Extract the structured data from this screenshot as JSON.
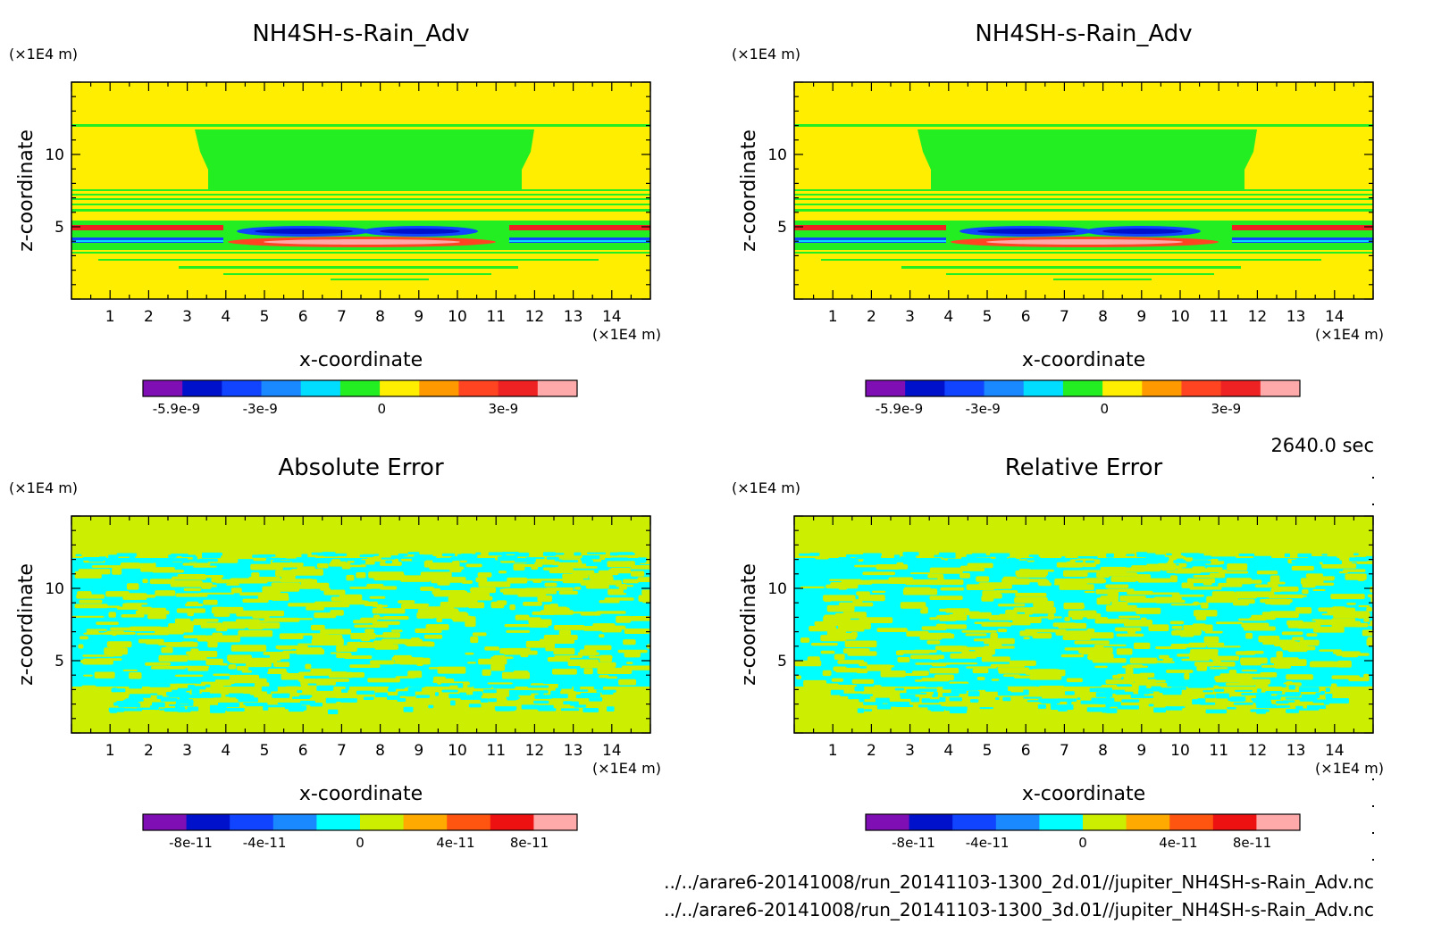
{
  "time_label": "2640.0 sec",
  "files": [
    "../../arare6-20141008/run_20141103-1300_2d.01//jupiter_NH4SH-s-Rain_Adv.nc",
    "../../arare6-20141008/run_20141103-1300_3d.01//jupiter_NH4SH-s-Rain_Adv.nc"
  ],
  "chart_data": [
    {
      "type": "heatmap",
      "title": "NH4SH-s-Rain_Adv",
      "xlabel": "x-coordinate",
      "ylabel": "z-coordinate",
      "x_unit": "(×1E4 m)",
      "y_unit": "(×1E4 m)",
      "xlim": [
        0,
        15
      ],
      "ylim": [
        0,
        15
      ],
      "x_ticks": [
        1,
        2,
        3,
        4,
        5,
        6,
        7,
        8,
        9,
        10,
        11,
        12,
        13,
        14
      ],
      "y_ticks": [
        5,
        10
      ],
      "colorbar": {
        "colors": [
          "#7f0fb4",
          "#0011cc",
          "#1144ff",
          "#1a88ff",
          "#00ddff",
          "#22ee22",
          "#ffee00",
          "#ff9900",
          "#ff4422",
          "#ee2222",
          "#ffaaaa"
        ],
        "labels": [
          "-5.9e-9",
          "-3e-9",
          "0",
          "3e-9"
        ]
      }
    },
    {
      "type": "heatmap",
      "title": "NH4SH-s-Rain_Adv",
      "xlabel": "x-coordinate",
      "ylabel": "z-coordinate",
      "x_unit": "(×1E4 m)",
      "y_unit": "(×1E4 m)",
      "xlim": [
        0,
        15
      ],
      "ylim": [
        0,
        15
      ],
      "x_ticks": [
        1,
        2,
        3,
        4,
        5,
        6,
        7,
        8,
        9,
        10,
        11,
        12,
        13,
        14
      ],
      "y_ticks": [
        5,
        10
      ],
      "colorbar": {
        "colors": [
          "#7f0fb4",
          "#0011cc",
          "#1144ff",
          "#1a88ff",
          "#00ddff",
          "#22ee22",
          "#ffee00",
          "#ff9900",
          "#ff4422",
          "#ee2222",
          "#ffaaaa"
        ],
        "labels": [
          "-5.9e-9",
          "-3e-9",
          "0",
          "3e-9"
        ]
      }
    },
    {
      "type": "heatmap",
      "title": "Absolute Error",
      "xlabel": "x-coordinate",
      "ylabel": "z-coordinate",
      "x_unit": "(×1E4 m)",
      "y_unit": "(×1E4 m)",
      "xlim": [
        0,
        15
      ],
      "ylim": [
        0,
        15
      ],
      "x_ticks": [
        1,
        2,
        3,
        4,
        5,
        6,
        7,
        8,
        9,
        10,
        11,
        12,
        13,
        14
      ],
      "y_ticks": [
        5,
        10
      ],
      "colorbar": {
        "colors": [
          "#7f0fb4",
          "#0011cc",
          "#1144ff",
          "#1a88ff",
          "#00ffff",
          "#ccee00",
          "#ffaa00",
          "#ff5511",
          "#ee1111",
          "#ffaaaa"
        ],
        "labels": [
          "-8e-11",
          "-4e-11",
          "0",
          "4e-11",
          "8e-11"
        ]
      }
    },
    {
      "type": "heatmap",
      "title": "Relative Error",
      "xlabel": "x-coordinate",
      "ylabel": "z-coordinate",
      "x_unit": "(×1E4 m)",
      "y_unit": "(×1E4 m)",
      "xlim": [
        0,
        15
      ],
      "ylim": [
        0,
        15
      ],
      "x_ticks": [
        1,
        2,
        3,
        4,
        5,
        6,
        7,
        8,
        9,
        10,
        11,
        12,
        13,
        14
      ],
      "y_ticks": [
        5,
        10
      ],
      "colorbar": {
        "colors": [
          "#7f0fb4",
          "#0011cc",
          "#1144ff",
          "#1a88ff",
          "#00ffff",
          "#ccee00",
          "#ffaa00",
          "#ff5511",
          "#ee1111",
          "#ffaaaa"
        ],
        "labels": [
          "-8e-11",
          "-4e-11",
          "0",
          "4e-11",
          "8e-11"
        ]
      }
    }
  ]
}
